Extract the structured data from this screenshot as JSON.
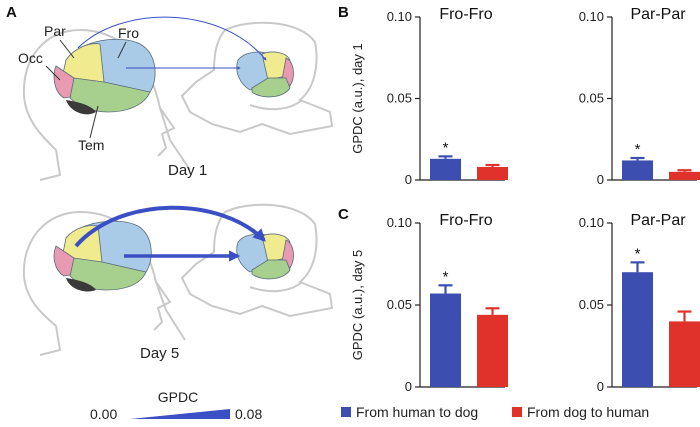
{
  "panels": {
    "a": "A",
    "b": "B",
    "c": "C"
  },
  "brain_regions": {
    "occ": "Occ",
    "par": "Par",
    "fro": "Fro",
    "tem": "Tem"
  },
  "days": {
    "day1": "Day 1",
    "day5": "Day 5"
  },
  "gpdc_scale": {
    "title": "GPDC",
    "min": "0.00",
    "max": "0.08"
  },
  "legend": {
    "human_to_dog": "From human to dog",
    "dog_to_human": "From dog to human"
  },
  "colors": {
    "human_to_dog": "#3c4fb0",
    "dog_to_human": "#e0322b",
    "arrow": "#3a4fc4"
  },
  "chart_data": [
    {
      "type": "bar",
      "panel": "B",
      "title": "Fro-Fro",
      "ylabel": "GPDC (a.u.), day 1",
      "ylim": [
        0,
        0.1
      ],
      "yticks": [
        0,
        0.05,
        0.1
      ],
      "yticklabels": [
        "0",
        "0.05",
        "0.10"
      ],
      "series": [
        {
          "name": "From human to dog",
          "value": 0.013,
          "error": 0.0015,
          "significant": true
        },
        {
          "name": "From dog to human",
          "value": 0.008,
          "error": 0.0012,
          "significant": false
        }
      ]
    },
    {
      "type": "bar",
      "panel": "B",
      "title": "Par-Par",
      "ylabel": "",
      "ylim": [
        0,
        0.1
      ],
      "yticks": [
        0,
        0.05,
        0.1
      ],
      "yticklabels": [
        "0",
        "0.05",
        "0.10"
      ],
      "series": [
        {
          "name": "From human to dog",
          "value": 0.012,
          "error": 0.0015,
          "significant": true
        },
        {
          "name": "From dog to human",
          "value": 0.005,
          "error": 0.001,
          "significant": false
        }
      ]
    },
    {
      "type": "bar",
      "panel": "C",
      "title": "Fro-Fro",
      "ylabel": "GPDC (a.u.), day 5",
      "ylim": [
        0,
        0.1
      ],
      "yticks": [
        0,
        0.05,
        0.1
      ],
      "yticklabels": [
        "0",
        "0.05",
        "0.10"
      ],
      "series": [
        {
          "name": "From human to dog",
          "value": 0.057,
          "error": 0.005,
          "significant": true
        },
        {
          "name": "From dog to human",
          "value": 0.044,
          "error": 0.004,
          "significant": false
        }
      ]
    },
    {
      "type": "bar",
      "panel": "C",
      "title": "Par-Par",
      "ylabel": "",
      "ylim": [
        0,
        0.1
      ],
      "yticks": [
        0,
        0.05,
        0.1
      ],
      "yticklabels": [
        "0",
        "0.05",
        "0.10"
      ],
      "series": [
        {
          "name": "From human to dog",
          "value": 0.07,
          "error": 0.006,
          "significant": true
        },
        {
          "name": "From dog to human",
          "value": 0.04,
          "error": 0.006,
          "significant": false
        }
      ]
    }
  ]
}
